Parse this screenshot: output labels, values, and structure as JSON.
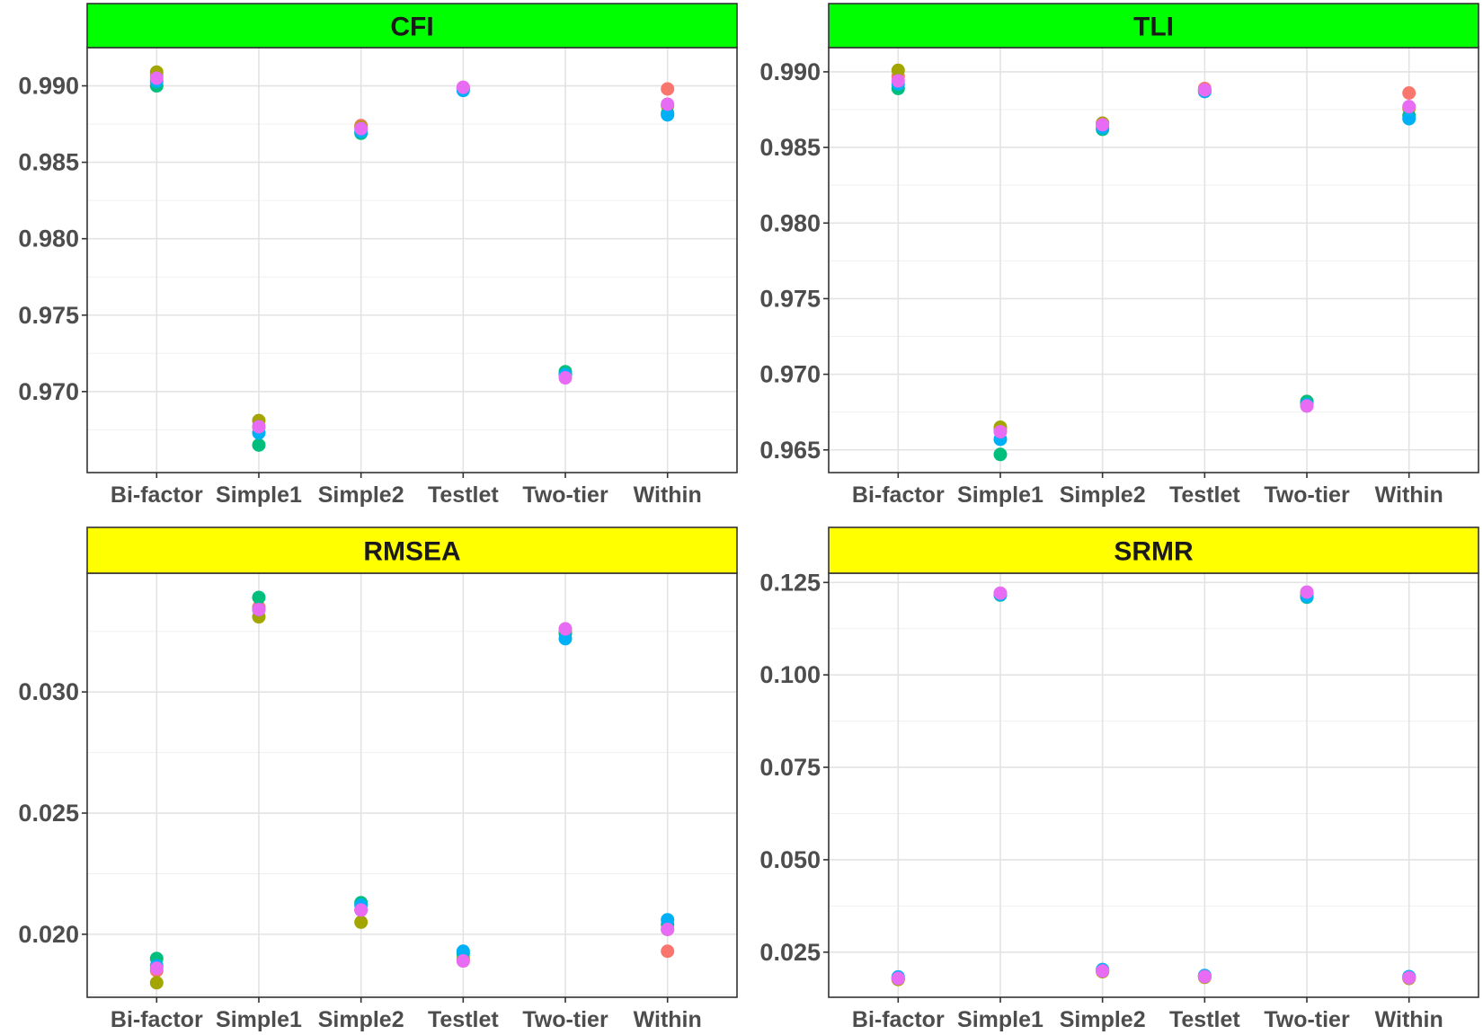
{
  "series_colors": {
    "s1": "#F8766D",
    "s2": "#A3A500",
    "s3": "#00BF7D",
    "s4": "#00B0F6",
    "s5": "#E76BF3"
  },
  "strip_colors": {
    "green": "#00FF00",
    "yellow": "#FFFF00"
  },
  "chart_data": [
    {
      "type": "scatter",
      "title": "CFI",
      "strip_color": "#00FF00",
      "categories": [
        "Bi-factor",
        "Simple1",
        "Simple2",
        "Testlet",
        "Two-tier",
        "Within"
      ],
      "yticks": [
        "0.970",
        "0.975",
        "0.980",
        "0.985",
        "0.990"
      ],
      "ylim": [
        0.9647,
        0.9925
      ],
      "grid": true,
      "series": [
        {
          "color": "#F8766D",
          "values": [
            0.9907,
            0.9677,
            0.9874,
            0.9899,
            0.9712,
            0.9898
          ]
        },
        {
          "color": "#A3A500",
          "values": [
            0.9909,
            0.9681,
            0.9873,
            0.9898,
            0.9711,
            0.9887
          ]
        },
        {
          "color": "#00BF7D",
          "values": [
            0.99,
            0.9665,
            0.9869,
            0.9898,
            0.9713,
            0.9882
          ]
        },
        {
          "color": "#00B0F6",
          "values": [
            0.9903,
            0.9673,
            0.987,
            0.9897,
            0.9711,
            0.9881
          ]
        },
        {
          "color": "#E76BF3",
          "values": [
            0.9905,
            0.9677,
            0.9872,
            0.9899,
            0.9709,
            0.9888
          ]
        }
      ]
    },
    {
      "type": "scatter",
      "title": "TLI",
      "strip_color": "#00FF00",
      "categories": [
        "Bi-factor",
        "Simple1",
        "Simple2",
        "Testlet",
        "Two-tier",
        "Within"
      ],
      "yticks": [
        "0.965",
        "0.970",
        "0.975",
        "0.980",
        "0.985",
        "0.990"
      ],
      "ylim": [
        0.9635,
        0.9916
      ],
      "grid": true,
      "series": [
        {
          "color": "#F8766D",
          "values": [
            0.9897,
            0.9663,
            0.9866,
            0.9889,
            0.9682,
            0.9886
          ]
        },
        {
          "color": "#A3A500",
          "values": [
            0.9901,
            0.9665,
            0.9866,
            0.9888,
            0.9681,
            0.9876
          ]
        },
        {
          "color": "#00BF7D",
          "values": [
            0.9889,
            0.9647,
            0.9862,
            0.9887,
            0.9682,
            0.9871
          ]
        },
        {
          "color": "#00B0F6",
          "values": [
            0.9892,
            0.9657,
            0.9863,
            0.9887,
            0.968,
            0.9869
          ]
        },
        {
          "color": "#E76BF3",
          "values": [
            0.9894,
            0.9662,
            0.9865,
            0.9888,
            0.9679,
            0.9877
          ]
        }
      ]
    },
    {
      "type": "scatter",
      "title": "RMSEA",
      "strip_color": "#FFFF00",
      "categories": [
        "Bi-factor",
        "Simple1",
        "Simple2",
        "Testlet",
        "Two-tier",
        "Within"
      ],
      "yticks": [
        "0.020",
        "0.025",
        "0.030"
      ],
      "ylim": [
        0.0174,
        0.0349
      ],
      "grid": true,
      "series": [
        {
          "color": "#F8766D",
          "values": [
            0.0185,
            0.0335,
            0.021,
            0.0189,
            0.0326,
            0.0193
          ]
        },
        {
          "color": "#A3A500",
          "values": [
            0.018,
            0.0331,
            0.0205,
            0.019,
            0.0325,
            0.0202
          ]
        },
        {
          "color": "#00BF7D",
          "values": [
            0.019,
            0.0339,
            0.0213,
            0.0192,
            0.0324,
            0.0204
          ]
        },
        {
          "color": "#00B0F6",
          "values": [
            0.0187,
            0.0334,
            0.0212,
            0.0193,
            0.0322,
            0.0206
          ]
        },
        {
          "color": "#E76BF3",
          "values": [
            0.0186,
            0.0334,
            0.021,
            0.0189,
            0.0326,
            0.0202
          ]
        }
      ]
    },
    {
      "type": "scatter",
      "title": "SRMR",
      "strip_color": "#FFFF00",
      "categories": [
        "Bi-factor",
        "Simple1",
        "Simple2",
        "Testlet",
        "Two-tier",
        "Within"
      ],
      "yticks": [
        "0.025",
        "0.050",
        "0.075",
        "0.100",
        "0.125"
      ],
      "ylim": [
        0.0128,
        0.1275
      ],
      "grid": true,
      "series": [
        {
          "color": "#F8766D",
          "values": [
            0.0178,
            0.122,
            0.0198,
            0.0183,
            0.1222,
            0.018
          ]
        },
        {
          "color": "#A3A500",
          "values": [
            0.0176,
            0.1218,
            0.0197,
            0.0182,
            0.1218,
            0.0179
          ]
        },
        {
          "color": "#00BF7D",
          "values": [
            0.018,
            0.1216,
            0.0201,
            0.0186,
            0.121,
            0.0183
          ]
        },
        {
          "color": "#00B0F6",
          "values": [
            0.0183,
            0.1217,
            0.0203,
            0.0187,
            0.1212,
            0.0184
          ]
        },
        {
          "color": "#E76BF3",
          "values": [
            0.0179,
            0.1221,
            0.0199,
            0.0184,
            0.1224,
            0.0181
          ]
        }
      ]
    }
  ]
}
